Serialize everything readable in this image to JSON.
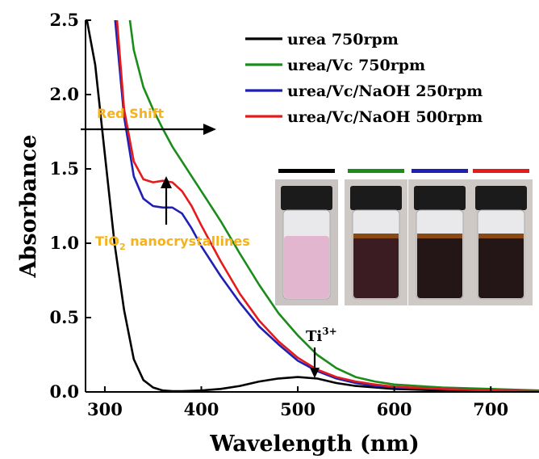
{
  "chart_data": {
    "type": "line",
    "title": "",
    "xlabel": "Wavelength (nm)",
    "ylabel": "Absorbance",
    "xlim": [
      280,
      750
    ],
    "ylim": [
      0,
      2.5
    ],
    "xticks": [
      300,
      400,
      500,
      600,
      700
    ],
    "yticks": [
      0.0,
      0.5,
      1.0,
      1.5,
      2.0,
      2.5
    ],
    "xtick_labels": [
      "300",
      "400",
      "500",
      "600",
      "700"
    ],
    "ytick_labels": [
      "0.0",
      "0.5",
      "1.0",
      "1.5",
      "2.0",
      "2.5"
    ],
    "grid": false,
    "legend_placement": "top-right",
    "series": [
      {
        "name": "urea 750rpm",
        "color": "#000000",
        "x": [
          280,
          290,
          300,
          310,
          320,
          330,
          340,
          350,
          360,
          370,
          380,
          400,
          420,
          440,
          460,
          480,
          500,
          520,
          540,
          560,
          600,
          650,
          700,
          750
        ],
        "y": [
          2.55,
          2.2,
          1.6,
          1.0,
          0.55,
          0.22,
          0.08,
          0.03,
          0.01,
          0.005,
          0.005,
          0.01,
          0.02,
          0.04,
          0.07,
          0.09,
          0.1,
          0.09,
          0.06,
          0.04,
          0.02,
          0.01,
          0.005,
          0.0
        ]
      },
      {
        "name": "urea/Vc 750rpm",
        "color": "#1a8c1a",
        "x": [
          325,
          330,
          340,
          350,
          360,
          370,
          380,
          390,
          400,
          420,
          440,
          460,
          480,
          500,
          520,
          540,
          560,
          580,
          600,
          650,
          700,
          750
        ],
        "y": [
          2.55,
          2.3,
          2.05,
          1.9,
          1.77,
          1.65,
          1.55,
          1.45,
          1.35,
          1.15,
          0.93,
          0.72,
          0.53,
          0.38,
          0.25,
          0.16,
          0.1,
          0.07,
          0.05,
          0.03,
          0.02,
          0.01
        ]
      },
      {
        "name": "urea/Vc/NaOH 250rpm",
        "color": "#1f1fb4",
        "x": [
          310,
          320,
          330,
          340,
          350,
          360,
          370,
          380,
          390,
          400,
          420,
          440,
          460,
          480,
          500,
          520,
          540,
          560,
          580,
          600,
          650,
          700,
          750
        ],
        "y": [
          2.55,
          1.85,
          1.45,
          1.3,
          1.25,
          1.24,
          1.24,
          1.2,
          1.1,
          0.98,
          0.78,
          0.6,
          0.44,
          0.32,
          0.21,
          0.14,
          0.09,
          0.06,
          0.04,
          0.03,
          0.02,
          0.01,
          0.005
        ]
      },
      {
        "name": "urea/Vc/NaOH 500rpm",
        "color": "#e41a1c",
        "x": [
          312,
          320,
          330,
          340,
          350,
          360,
          370,
          380,
          390,
          400,
          420,
          440,
          460,
          480,
          500,
          520,
          540,
          560,
          580,
          600,
          650,
          700,
          750
        ],
        "y": [
          2.55,
          1.9,
          1.55,
          1.43,
          1.41,
          1.42,
          1.41,
          1.35,
          1.25,
          1.12,
          0.88,
          0.66,
          0.48,
          0.34,
          0.23,
          0.15,
          0.1,
          0.07,
          0.05,
          0.035,
          0.02,
          0.01,
          0.005
        ]
      }
    ],
    "annotations": {
      "red_shift": "Red Shift",
      "tio2_prefix": "TiO",
      "tio2_sub": "2",
      "tio2_suffix": " nanocrystallines",
      "ti3_base": "Ti",
      "ti3_sup": "3+"
    },
    "inset": {
      "vials": [
        {
          "bar_color": "#000000",
          "liquid_color": "#e3b6cf"
        },
        {
          "bar_color": "#1a8c1a",
          "liquid_color": "#3b1c22"
        },
        {
          "bar_color": "#1f1fb4",
          "liquid_color": "#241616"
        },
        {
          "bar_color": "#e41a1c",
          "liquid_color": "#241616"
        }
      ]
    }
  }
}
